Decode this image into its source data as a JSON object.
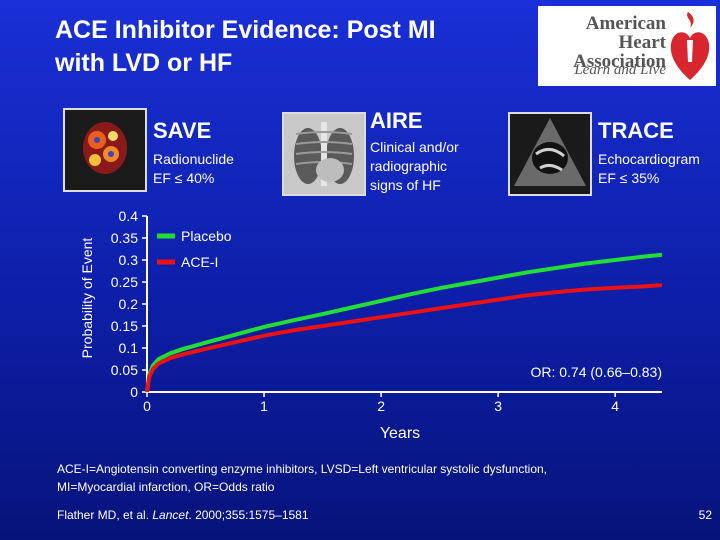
{
  "slide": {
    "title_line1": "ACE Inhibitor Evidence: Post MI",
    "title_line2": "with LVD or HF",
    "logo": {
      "org_line1": "American Heart",
      "org_line2": "Association",
      "tagline": "Learn and Live"
    },
    "trials": [
      {
        "name": "SAVE",
        "desc": [
          "Radionuclide",
          "EF ≤ 40%"
        ]
      },
      {
        "name": "AIRE",
        "desc": [
          "Clinical and/or",
          "radiographic",
          "signs of HF"
        ]
      },
      {
        "name": "TRACE",
        "desc": [
          "Echocardiogram",
          "EF ≤ 35%"
        ]
      }
    ],
    "footnote_line1": "ACE-I=Angiotensin converting enzyme inhibitors, LVSD=Left ventricular systolic dysfunction,",
    "footnote_line2": "MI=Myocardial infarction, OR=Odds ratio",
    "citation_pre": "Flather MD, et al. ",
    "citation_journal": "Lancet",
    "citation_post": ". 2000;355:1575–1581",
    "page_number": "52"
  },
  "colors": {
    "background": "#1020c0",
    "placebo": "#22dd33",
    "ace_i": "#ee1111",
    "axis": "#ffffff"
  },
  "chart_data": {
    "type": "line",
    "xlabel": "Years",
    "ylabel": "Probability of Event",
    "xlim": [
      0,
      4.4
    ],
    "ylim": [
      0,
      0.4
    ],
    "xticks": [
      "0",
      "1",
      "2",
      "3",
      "4"
    ],
    "yticks": [
      "0",
      "0.05",
      "0.1",
      "0.15",
      "0.2",
      "0.25",
      "0.3",
      "0.35",
      "0.4"
    ],
    "annotation": "OR: 0.74 (0.66–0.83)",
    "series": [
      {
        "name": "Placebo",
        "color": "#22dd33",
        "x": [
          0,
          0.02,
          0.05,
          0.1,
          0.2,
          0.3,
          0.5,
          0.75,
          1.0,
          1.25,
          1.5,
          1.75,
          2.0,
          2.25,
          2.5,
          2.75,
          3.0,
          3.25,
          3.5,
          3.75,
          4.0,
          4.25,
          4.4
        ],
        "y": [
          0,
          0.04,
          0.06,
          0.075,
          0.088,
          0.097,
          0.112,
          0.13,
          0.148,
          0.163,
          0.177,
          0.192,
          0.207,
          0.222,
          0.236,
          0.248,
          0.26,
          0.272,
          0.282,
          0.292,
          0.3,
          0.308,
          0.312
        ]
      },
      {
        "name": "ACE-I",
        "color": "#ee1111",
        "x": [
          0,
          0.02,
          0.05,
          0.1,
          0.2,
          0.3,
          0.5,
          0.75,
          1.0,
          1.25,
          1.5,
          1.75,
          2.0,
          2.25,
          2.5,
          2.75,
          3.0,
          3.25,
          3.5,
          3.75,
          4.0,
          4.25,
          4.4
        ],
        "y": [
          0,
          0.035,
          0.052,
          0.065,
          0.077,
          0.085,
          0.098,
          0.113,
          0.128,
          0.14,
          0.15,
          0.16,
          0.17,
          0.18,
          0.19,
          0.2,
          0.21,
          0.22,
          0.227,
          0.233,
          0.237,
          0.24,
          0.243
        ]
      }
    ]
  }
}
